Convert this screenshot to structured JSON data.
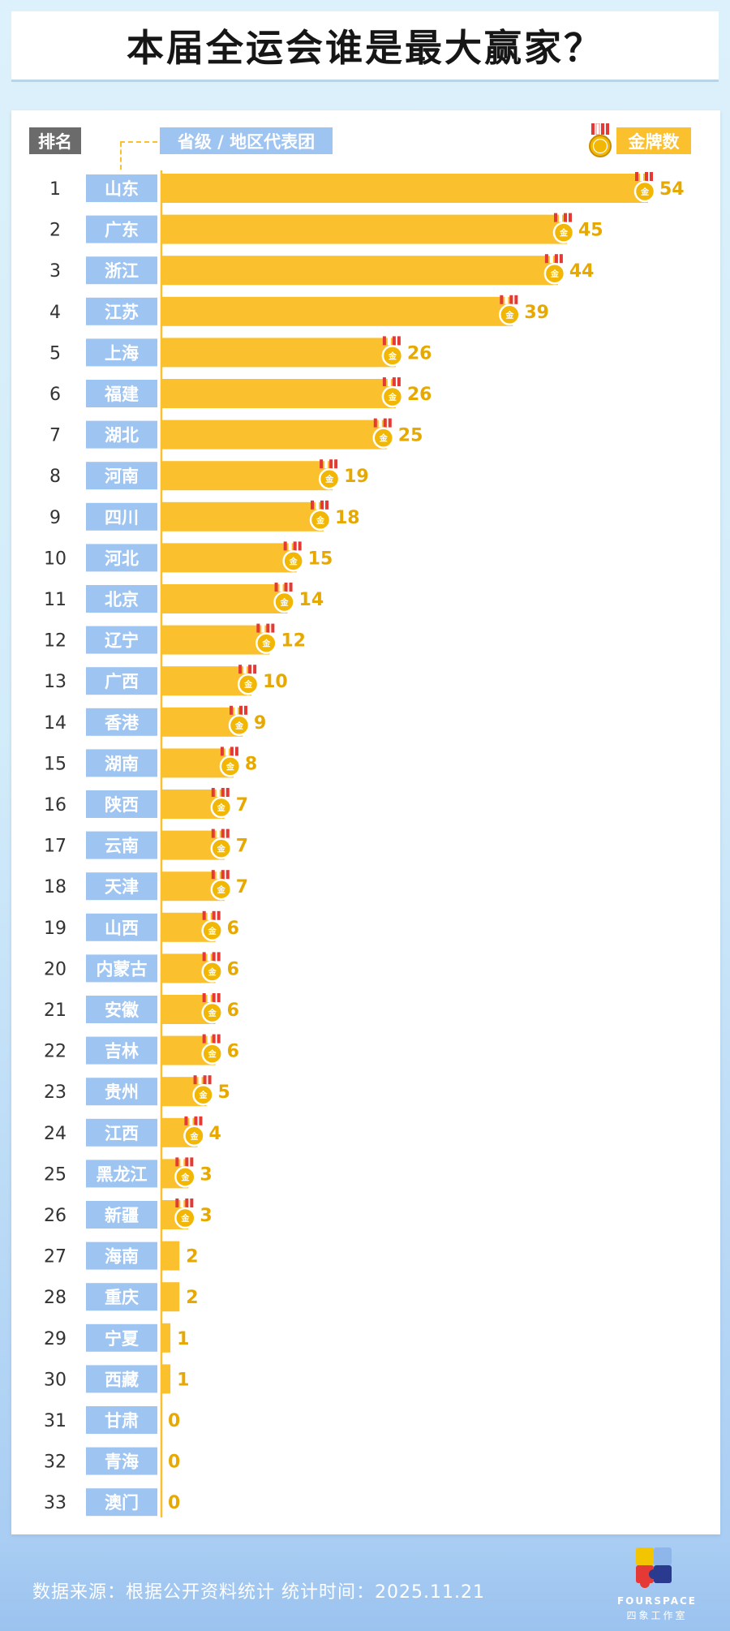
{
  "title": "本届全运会谁是最大赢家？",
  "headers": {
    "rank": "排名",
    "region": "省级 / 地区代表团",
    "gold": "金牌数"
  },
  "medal_glyph": "金",
  "footer": {
    "source": "数据来源：根据公开资料统计 统计时间：2025.11.21"
  },
  "logo": {
    "name": "FOURSPACE",
    "subtitle": "四象工作室",
    "icon": "puzzle-logo-icon"
  },
  "colors": {
    "bar": "#fbc02d",
    "value": "#e7a800",
    "label_bg": "#9ec4f2",
    "rank_text": "#333333"
  },
  "chart_data": {
    "type": "bar",
    "orientation": "horizontal",
    "title": "本届全运会谁是最大赢家？",
    "xlabel": "金牌数",
    "ylabel": "省级 / 地区代表团",
    "ranks": [
      "1",
      "2",
      "3",
      "4",
      "5",
      "6",
      "7",
      "8",
      "9",
      "10",
      "11",
      "12",
      "13",
      "14",
      "15",
      "16",
      "17",
      "18",
      "19",
      "20",
      "21",
      "22",
      "23",
      "24",
      "25",
      "26",
      "27",
      "28",
      "29",
      "30",
      "31",
      "32",
      "33"
    ],
    "categories": [
      "山东",
      "广东",
      "浙江",
      "江苏",
      "上海",
      "福建",
      "湖北",
      "河南",
      "四川",
      "河北",
      "北京",
      "辽宁",
      "广西",
      "香港",
      "湖南",
      "陕西",
      "云南",
      "天津",
      "山西",
      "内蒙古",
      "安徽",
      "吉林",
      "贵州",
      "江西",
      "黑龙江",
      "新疆",
      "海南",
      "重庆",
      "宁夏",
      "西藏",
      "甘肃",
      "青海",
      "澳门"
    ],
    "values": [
      54,
      45,
      44,
      39,
      26,
      26,
      25,
      19,
      18,
      15,
      14,
      12,
      10,
      9,
      8,
      7,
      7,
      7,
      6,
      6,
      6,
      6,
      5,
      4,
      3,
      3,
      2,
      2,
      1,
      1,
      0,
      0,
      0
    ],
    "xlim": [
      0,
      54
    ],
    "grid": false,
    "legend": "none"
  }
}
